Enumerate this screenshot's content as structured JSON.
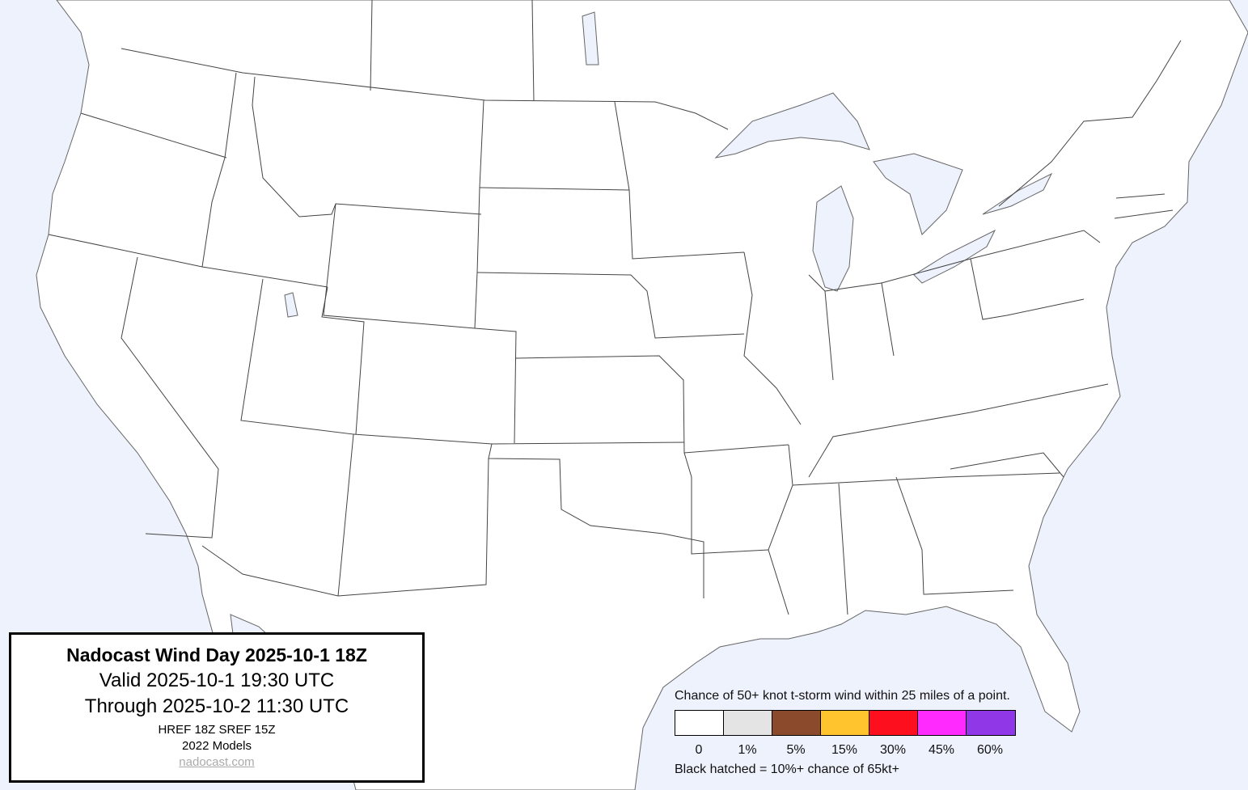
{
  "title_box": {
    "title": "Nadocast Wind Day 2025-10-1 18Z",
    "valid": "Valid 2025-10-1 19:30 UTC",
    "through": "Through 2025-10-2 11:30 UTC",
    "models": "HREF 18Z SREF 15Z",
    "model_version": "2022 Models",
    "website": "nadocast.com"
  },
  "legend": {
    "caption": "Chance of 50+ knot t-storm wind within 25 miles of a point.",
    "bins": [
      {
        "label": "0",
        "color": "#ffffff"
      },
      {
        "label": "1%",
        "color": "#e4e4e4"
      },
      {
        "label": "5%",
        "color": "#8b4a2b"
      },
      {
        "label": "15%",
        "color": "#ffc42e"
      },
      {
        "label": "30%",
        "color": "#fe0f1e"
      },
      {
        "label": "45%",
        "color": "#fe2afe"
      },
      {
        "label": "60%",
        "color": "#9037e8"
      }
    ],
    "hatch_note": "Black hatched = 10%+ chance of 65kt+"
  },
  "map": {
    "water_color": "#eef2fd",
    "land_color": "#ffffff",
    "border_color": "#333333",
    "forecast_areas": "none"
  }
}
